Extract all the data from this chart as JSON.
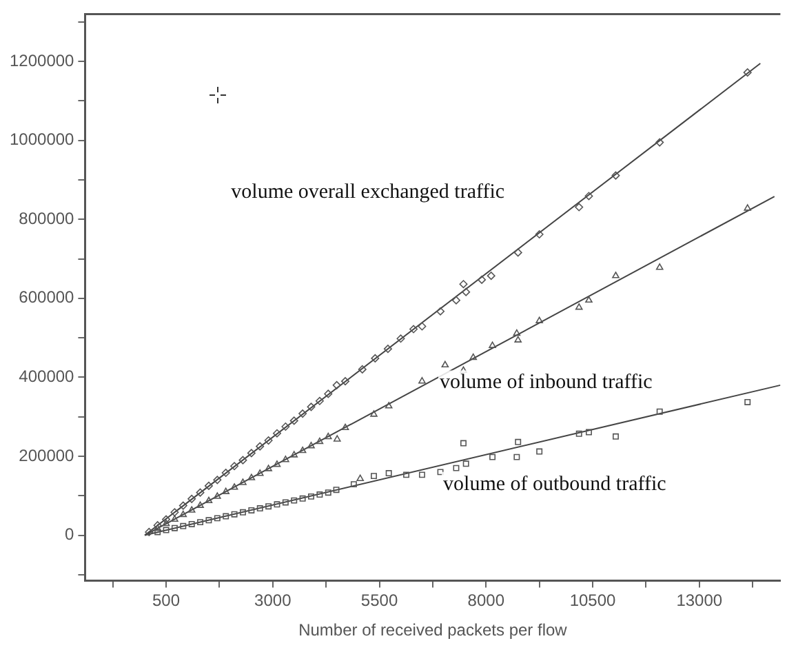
{
  "chart_data": {
    "type": "scatter",
    "xlabel": "Number of received packets per flow",
    "xlim": [
      -1400,
      14900
    ],
    "ylim": [
      -115000,
      1320000
    ],
    "xticks": [
      {
        "value": -750,
        "label": null
      },
      500,
      {
        "value": 1750,
        "label": null
      },
      3000,
      {
        "value": 4250,
        "label": null
      },
      5500,
      {
        "value": 6750,
        "label": null
      },
      8000,
      {
        "value": 9250,
        "label": null
      },
      10500,
      {
        "value": 11750,
        "label": null
      },
      13000,
      {
        "value": 14250,
        "label": null
      }
    ],
    "yticks": [
      {
        "value": -100000,
        "label": null
      },
      0,
      {
        "value": 100000,
        "label": null
      },
      200000,
      {
        "value": 300000,
        "label": null
      },
      400000,
      {
        "value": 500000,
        "label": null
      },
      600000,
      {
        "value": 700000,
        "label": null
      },
      800000,
      {
        "value": 900000,
        "label": null
      },
      1000000,
      {
        "value": 1100000,
        "label": null
      },
      1200000,
      {
        "value": 1300000,
        "label": null
      }
    ],
    "grid": false,
    "legend": false,
    "series": [
      {
        "marker": "diamond",
        "color": "#555555",
        "x": [
          100,
          300,
          500,
          700,
          900,
          1100,
          1300,
          1500,
          1700,
          1900,
          2100,
          2300,
          2500,
          2700,
          2900,
          3100,
          3300,
          3500,
          3700,
          3900,
          4100,
          4300,
          4500,
          4700,
          5100,
          5400,
          5700,
          6000,
          6300,
          6500,
          6930,
          7300,
          7470,
          7530,
          7900,
          8120,
          8750,
          9250,
          10180,
          10410,
          11040,
          12070,
          14130
        ],
        "values": [
          8000,
          25000,
          40000,
          58000,
          75000,
          92000,
          108000,
          125000,
          140000,
          158000,
          175000,
          190000,
          208000,
          225000,
          240000,
          258000,
          275000,
          290000,
          308000,
          325000,
          340000,
          358000,
          380000,
          390000,
          420000,
          448000,
          472000,
          498000,
          522000,
          529000,
          567000,
          595000,
          636000,
          616000,
          647000,
          657000,
          716000,
          762000,
          831000,
          859000,
          911000,
          995000,
          1172000
        ]
      },
      {
        "marker": "triangle",
        "color": "#555555",
        "x": [
          300,
          500,
          700,
          900,
          1100,
          1300,
          1500,
          1700,
          1900,
          2100,
          2300,
          2500,
          2700,
          2900,
          3100,
          3300,
          3500,
          3700,
          3900,
          4100,
          4300,
          4510,
          4700,
          5050,
          5370,
          5720,
          6500,
          7040,
          7470,
          7700,
          8150,
          8720,
          8750,
          9250,
          10180,
          10410,
          11040,
          12070,
          14130
        ],
        "values": [
          17000,
          29000,
          40000,
          52000,
          63000,
          75000,
          87000,
          98000,
          110000,
          121000,
          133000,
          145000,
          156000,
          168000,
          179000,
          191000,
          203000,
          214000,
          226000,
          237000,
          249000,
          243000,
          272000,
          143000,
          306000,
          327000,
          390000,
          431000,
          417000,
          450000,
          480000,
          511000,
          494000,
          543000,
          577000,
          595000,
          657000,
          678000,
          828000
        ]
      },
      {
        "marker": "square",
        "color": "#555555",
        "x": [
          300,
          500,
          700,
          900,
          1100,
          1300,
          1500,
          1700,
          1900,
          2100,
          2300,
          2500,
          2700,
          2900,
          3100,
          3300,
          3500,
          3700,
          3900,
          4100,
          4300,
          4490,
          4900,
          5370,
          5720,
          6130,
          6500,
          6930,
          7300,
          7470,
          7530,
          8150,
          8720,
          8750,
          9250,
          10180,
          10410,
          11040,
          12070,
          14130
        ],
        "values": [
          8000,
          13000,
          18000,
          23000,
          28000,
          33000,
          38000,
          43000,
          48000,
          53000,
          58000,
          63000,
          68000,
          73000,
          78000,
          83000,
          88000,
          93000,
          98000,
          103000,
          108000,
          115000,
          129000,
          150000,
          157000,
          153000,
          153000,
          160000,
          170000,
          233000,
          181000,
          198000,
          198000,
          236000,
          212000,
          257000,
          261000,
          250000,
          313000,
          337000
        ]
      },
      {
        "type": "line",
        "marker": "none",
        "color": "#444444",
        "x": [
          0,
          14430
        ],
        "values": [
          0,
          1195000
        ]
      },
      {
        "type": "line",
        "marker": "none",
        "color": "#444444",
        "x": [
          0,
          14760
        ],
        "values": [
          0,
          858000
        ]
      },
      {
        "type": "line",
        "marker": "none",
        "color": "#444444",
        "x": [
          0,
          14900
        ],
        "values": [
          0,
          380000
        ]
      }
    ],
    "annotations": [
      "volume overall exchanged traffic",
      "volume of inbound traffic",
      "volume of outbound traffic"
    ]
  }
}
